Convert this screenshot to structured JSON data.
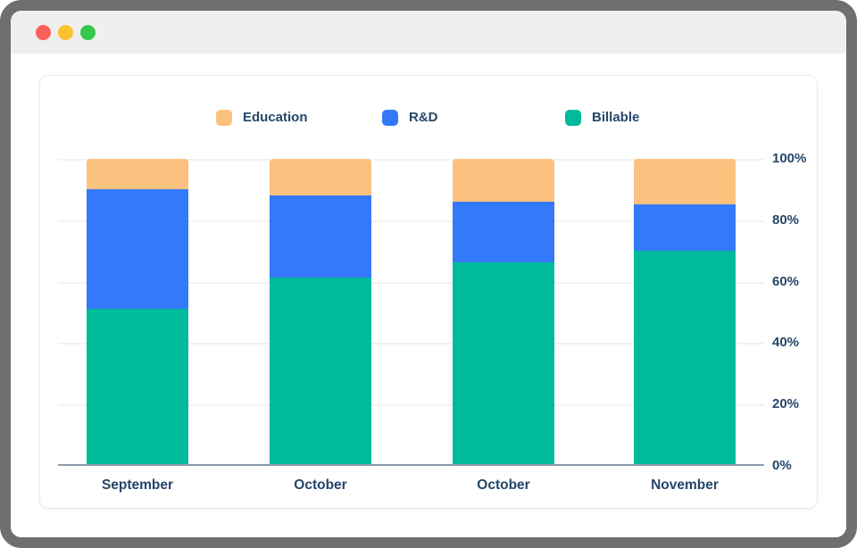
{
  "window": {
    "traffic_lights": [
      {
        "name": "close-button",
        "color": "#fb615c"
      },
      {
        "name": "minimize-button",
        "color": "#fcc12f"
      },
      {
        "name": "zoom-button",
        "color": "#34c748"
      }
    ],
    "titlebar_color": "#efefef",
    "frame_color": "#6f6f6f"
  },
  "legend": [
    {
      "label": "Education",
      "color": "#fdc17f"
    },
    {
      "label": "R&D",
      "color": "#3379f9"
    },
    {
      "label": "Billable",
      "color": "#00ba9c"
    }
  ],
  "chart_data": {
    "type": "bar",
    "stacked": true,
    "stack_order": "bottom-to-top",
    "categories": [
      "September",
      "October",
      "October",
      "November"
    ],
    "series": [
      {
        "name": "Billable",
        "color": "#00ba9c",
        "values": [
          51,
          61,
          66,
          70
        ]
      },
      {
        "name": "R&D",
        "color": "#3379f9",
        "values": [
          39,
          27,
          20,
          15
        ]
      },
      {
        "name": "Education",
        "color": "#fdc17f",
        "values": [
          10,
          12,
          14,
          15
        ]
      }
    ],
    "title": "",
    "xlabel": "",
    "ylabel": "",
    "ylim": [
      0,
      100
    ],
    "yticks": [
      {
        "value": 0,
        "label": "0%"
      },
      {
        "value": 20,
        "label": "20%"
      },
      {
        "value": 40,
        "label": "40%"
      },
      {
        "value": 60,
        "label": "60%"
      },
      {
        "value": 80,
        "label": "80%"
      },
      {
        "value": 100,
        "label": "100%"
      }
    ],
    "y_tick_side": "right",
    "grid": true,
    "legend_position": "top"
  },
  "colors": {
    "text": "#254669",
    "axis_line": "#8c99ae",
    "gridline": "#f2f2f2",
    "card_background": "#ffffff"
  }
}
